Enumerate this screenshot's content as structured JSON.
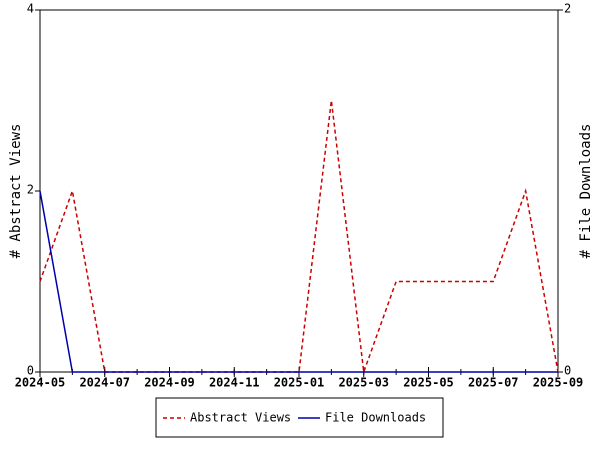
{
  "chart_data": {
    "type": "line",
    "x": [
      "2024-05",
      "2024-06",
      "2024-07",
      "2024-08",
      "2024-09",
      "2024-10",
      "2024-11",
      "2024-12",
      "2025-01",
      "2025-02",
      "2025-03",
      "2025-04",
      "2025-05",
      "2025-06",
      "2025-07",
      "2025-08",
      "2025-09"
    ],
    "series": [
      {
        "name": "Abstract Views",
        "color": "#cc0000",
        "dash": true,
        "values": [
          1,
          2,
          0,
          0,
          0,
          0,
          0,
          0,
          0,
          3,
          0,
          1,
          1,
          1,
          1,
          2,
          0
        ]
      },
      {
        "name": "File Downloads",
        "color": "#0000aa",
        "dash": false,
        "axis": "y2",
        "values": [
          1,
          0,
          0,
          0,
          0,
          0,
          0,
          0,
          0,
          0,
          0,
          0,
          0,
          0,
          0,
          0,
          0
        ]
      }
    ],
    "xlim": [
      "2024-05",
      "2025-09"
    ],
    "xticks": [
      "2024-05",
      "2024-07",
      "2024-09",
      "2024-11",
      "2025-01",
      "2025-03",
      "2025-05",
      "2025-07",
      "2025-09"
    ],
    "ylim": [
      0,
      4
    ],
    "yticks": [
      0,
      2,
      4
    ],
    "y2lim": [
      0,
      2
    ],
    "y2ticks": [
      0,
      2
    ],
    "ylabel": "# Abstract Views",
    "y2label": "# File Downloads",
    "legend": "bottom"
  }
}
